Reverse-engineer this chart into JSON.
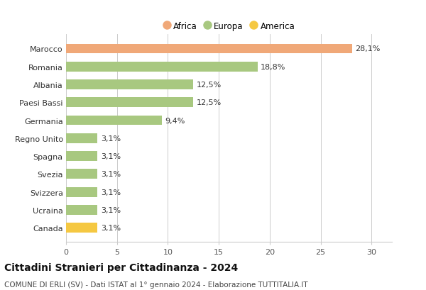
{
  "categories": [
    "Canada",
    "Ucraina",
    "Svizzera",
    "Svezia",
    "Spagna",
    "Regno Unito",
    "Germania",
    "Paesi Bassi",
    "Albania",
    "Romania",
    "Marocco"
  ],
  "values": [
    3.1,
    3.1,
    3.1,
    3.1,
    3.1,
    3.1,
    9.4,
    12.5,
    12.5,
    18.8,
    28.1
  ],
  "labels": [
    "3,1%",
    "3,1%",
    "3,1%",
    "3,1%",
    "3,1%",
    "3,1%",
    "9,4%",
    "12,5%",
    "12,5%",
    "18,8%",
    "28,1%"
  ],
  "colors": [
    "#f5c842",
    "#a8c880",
    "#a8c880",
    "#a8c880",
    "#a8c880",
    "#a8c880",
    "#a8c880",
    "#a8c880",
    "#a8c880",
    "#a8c880",
    "#f0a878"
  ],
  "legend_items": [
    {
      "label": "Africa",
      "color": "#f0a878"
    },
    {
      "label": "Europa",
      "color": "#a8c880"
    },
    {
      "label": "America",
      "color": "#f5c842"
    }
  ],
  "xlim": [
    0,
    32
  ],
  "xticks": [
    0,
    5,
    10,
    15,
    20,
    25,
    30
  ],
  "title": "Cittadini Stranieri per Cittadinanza - 2024",
  "subtitle": "COMUNE DI ERLI (SV) - Dati ISTAT al 1° gennaio 2024 - Elaborazione TUTTITALIA.IT",
  "background_color": "#ffffff",
  "grid_color": "#cccccc",
  "bar_height": 0.55,
  "label_fontsize": 8,
  "tick_fontsize": 8,
  "title_fontsize": 10,
  "subtitle_fontsize": 7.5
}
